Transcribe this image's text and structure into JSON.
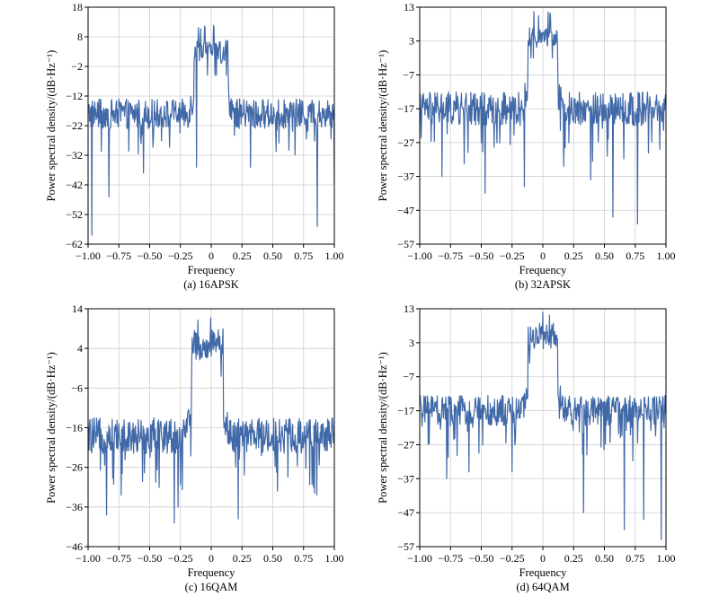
{
  "figure": {
    "line_color": "#4169a8",
    "grid_color": "#cfcfcf"
  },
  "chart_data": [
    {
      "type": "line",
      "caption": "(a) 16APSK",
      "xlabel": "Frequency",
      "ylabel": "Power spectral density/(dB·Hz⁻¹)",
      "xlim": [
        -1.0,
        1.0
      ],
      "ylim": [
        -62,
        18
      ],
      "xticks": [
        -1.0,
        -0.75,
        -0.5,
        -0.25,
        0,
        0.25,
        0.5,
        0.75,
        1.0
      ],
      "xtick_labels": [
        "−1.00",
        "−0.75",
        "−0.50",
        "−0.25",
        "0",
        "0.25",
        "0.50",
        "0.75",
        "1.00"
      ],
      "yticks": [
        18,
        8,
        -2,
        -12,
        -22,
        -32,
        -42,
        -52,
        -62
      ],
      "ytick_labels": [
        "18",
        "8",
        "−2",
        "−12",
        "−22",
        "−32",
        "−42",
        "−52",
        "−62"
      ],
      "grid": true,
      "series": [
        {
          "noise_floor": -18,
          "noise_spread": 5,
          "band_center": 0,
          "band_halfwidth": 0.14,
          "band_level": 3,
          "band_spread": 4,
          "peak": 12,
          "dips": [
            [
              -0.97,
              -59
            ],
            [
              -0.83,
              -46
            ],
            [
              -0.55,
              -38
            ],
            [
              -0.12,
              -36
            ],
            [
              0.32,
              -36
            ],
            [
              0.86,
              -56
            ],
            [
              1.0,
              -42
            ]
          ]
        }
      ]
    },
    {
      "type": "line",
      "caption": "(b) 32APSK",
      "xlabel": "Frequency",
      "ylabel": "Power spectral density/(dB·Hz⁻¹)",
      "xlim": [
        -1.0,
        1.0
      ],
      "ylim": [
        -57,
        13
      ],
      "xticks": [
        -1.0,
        -0.75,
        -0.5,
        -0.25,
        0,
        0.25,
        0.5,
        0.75,
        1.0
      ],
      "xtick_labels": [
        "−1.00",
        "−0.75",
        "−0.50",
        "−0.25",
        "0",
        "0.25",
        "0.50",
        "0.75",
        "1.00"
      ],
      "yticks": [
        13,
        3,
        -7,
        -17,
        -27,
        -37,
        -47,
        -57
      ],
      "ytick_labels": [
        "13",
        "3",
        "−7",
        "−17",
        "−27",
        "−37",
        "−47",
        "−57"
      ],
      "grid": true,
      "series": [
        {
          "noise_floor": -17,
          "noise_spread": 5,
          "band_center": 0,
          "band_halfwidth": 0.12,
          "band_level": 4,
          "band_spread": 3,
          "peak": 12,
          "dips": [
            [
              -0.82,
              -37
            ],
            [
              -0.47,
              -42
            ],
            [
              -0.15,
              -40
            ],
            [
              0.17,
              -34
            ],
            [
              0.39,
              -38
            ],
            [
              0.57,
              -49
            ],
            [
              0.77,
              -51
            ],
            [
              0.95,
              -29
            ]
          ]
        }
      ]
    },
    {
      "type": "line",
      "caption": "(c) 16QAM",
      "xlabel": "Frequency",
      "ylabel": "Power spectral density/(dB·Hz⁻¹)",
      "xlim": [
        -1.0,
        1.0
      ],
      "ylim": [
        -46,
        14
      ],
      "xticks": [
        -1.0,
        -0.75,
        -0.5,
        -0.25,
        0,
        0.25,
        0.5,
        0.75,
        1.0
      ],
      "xtick_labels": [
        "−1.00",
        "−0.75",
        "−0.50",
        "−0.25",
        "0",
        "0.25",
        "0.50",
        "0.75",
        "1.00"
      ],
      "yticks": [
        14,
        4,
        -6,
        -16,
        -26,
        -36,
        -46
      ],
      "ytick_labels": [
        "14",
        "4",
        "−6",
        "−16",
        "−26",
        "−36",
        "−46"
      ],
      "grid": true,
      "series": [
        {
          "noise_floor": -18,
          "noise_spread": 4.5,
          "band_center": -0.03,
          "band_halfwidth": 0.13,
          "band_level": 5,
          "band_spread": 4,
          "peak": 13,
          "dips": [
            [
              -0.85,
              -38
            ],
            [
              -0.73,
              -33
            ],
            [
              -0.3,
              -40
            ],
            [
              -0.27,
              -36
            ],
            [
              0.22,
              -39
            ],
            [
              0.54,
              -32
            ],
            [
              0.83,
              -31
            ]
          ]
        }
      ]
    },
    {
      "type": "line",
      "caption": "(d) 64QAM",
      "xlabel": "Frequency",
      "ylabel": "Power spectral density/(dB·Hz⁻¹)",
      "xlim": [
        -1.0,
        1.0
      ],
      "ylim": [
        -57,
        13
      ],
      "xticks": [
        -1.0,
        -0.75,
        -0.5,
        -0.25,
        0,
        0.25,
        0.5,
        0.75,
        1.0
      ],
      "xtick_labels": [
        "−1.00",
        "−0.75",
        "−0.50",
        "−0.25",
        "0",
        "0.25",
        "0.50",
        "0.75",
        "1.00"
      ],
      "yticks": [
        13,
        3,
        -7,
        -17,
        -27,
        -37,
        -47,
        -57
      ],
      "ytick_labels": [
        "13",
        "3",
        "−7",
        "−17",
        "−27",
        "−37",
        "−47",
        "−57"
      ],
      "grid": true,
      "series": [
        {
          "noise_floor": -17,
          "noise_spread": 4.5,
          "band_center": 0,
          "band_halfwidth": 0.12,
          "band_level": 5,
          "band_spread": 4,
          "peak": 13,
          "dips": [
            [
              -0.78,
              -37
            ],
            [
              -0.6,
              -35
            ],
            [
              -0.25,
              -35
            ],
            [
              0.33,
              -47
            ],
            [
              0.66,
              -52
            ],
            [
              0.82,
              -49
            ],
            [
              0.96,
              -55
            ]
          ]
        }
      ]
    }
  ]
}
